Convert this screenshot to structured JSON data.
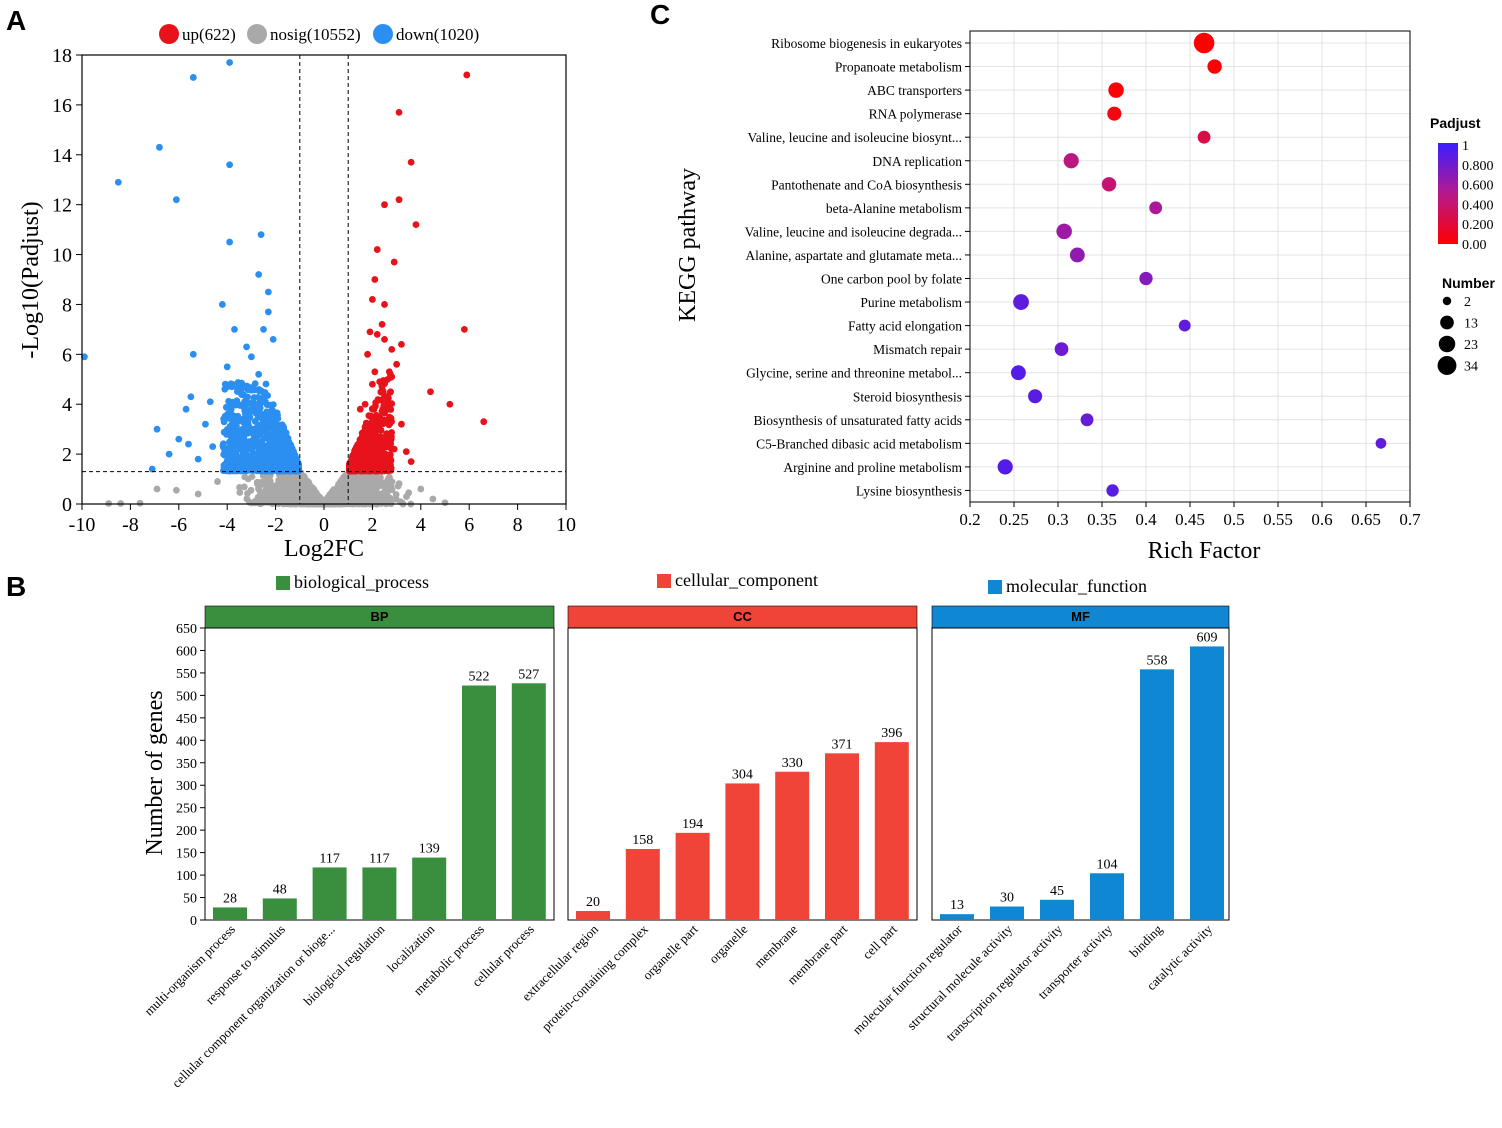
{
  "panels": {
    "a": "A",
    "b": "B",
    "c": "C"
  },
  "chart_data": [
    {
      "id": "A",
      "type": "scatter",
      "title": "",
      "xlabel": "Log2FC",
      "ylabel": "-Log10(Padjust)",
      "xlim": [
        -10,
        10
      ],
      "ylim": [
        0,
        18
      ],
      "xticks": [
        "-10",
        "-8",
        "-6",
        "-4",
        "-2",
        "0",
        "2",
        "4",
        "6",
        "8",
        "10"
      ],
      "yticks": [
        "0",
        "2",
        "4",
        "6",
        "8",
        "10",
        "12",
        "14",
        "16",
        "18"
      ],
      "thresholds": {
        "fc": [
          -1,
          1
        ],
        "padj": 1.3
      },
      "legend": [
        {
          "label": "up(622)",
          "color": "#e8121a"
        },
        {
          "label": "nosig(10552)",
          "color": "#a9a9a9"
        },
        {
          "label": "down(1020)",
          "color": "#2a8ff0"
        }
      ],
      "series": [
        {
          "name": "up",
          "points": [
            [
              5.9,
              17.2
            ],
            [
              3.1,
              15.7
            ],
            [
              3.6,
              13.7
            ],
            [
              3.1,
              12.2
            ],
            [
              2.5,
              12.0
            ],
            [
              3.8,
              11.2
            ],
            [
              2.2,
              10.2
            ],
            [
              2.9,
              9.7
            ],
            [
              2.1,
              9.0
            ],
            [
              2.0,
              8.2
            ],
            [
              2.5,
              8.0
            ],
            [
              2.4,
              7.2
            ],
            [
              5.8,
              7.0
            ],
            [
              1.9,
              6.9
            ],
            [
              2.2,
              6.8
            ],
            [
              3.2,
              6.4
            ],
            [
              2.5,
              6.6
            ],
            [
              1.8,
              6.0
            ],
            [
              2.8,
              6.2
            ],
            [
              3.0,
              5.6
            ],
            [
              2.1,
              5.3
            ],
            [
              2.7,
              5.3
            ],
            [
              4.4,
              4.5
            ],
            [
              5.2,
              4.0
            ],
            [
              6.6,
              3.3
            ],
            [
              3.2,
              3.2
            ],
            [
              2.0,
              4.8
            ],
            [
              2.3,
              4.9
            ],
            [
              1.5,
              3.8
            ],
            [
              1.7,
              4.0
            ],
            [
              3.4,
              2.1
            ],
            [
              3.6,
              1.7
            ],
            [
              2.6,
              1.9
            ],
            [
              2.9,
              2.2
            ]
          ],
          "cluster": {
            "x": [
              1.1,
              2.8
            ],
            "y": [
              1.3,
              5.2
            ],
            "n": 520
          }
        },
        {
          "name": "down",
          "points": [
            [
              -3.9,
              17.7
            ],
            [
              -5.4,
              17.1
            ],
            [
              -6.8,
              14.3
            ],
            [
              -3.9,
              13.6
            ],
            [
              -8.5,
              12.9
            ],
            [
              -6.1,
              12.2
            ],
            [
              -2.6,
              10.8
            ],
            [
              -3.9,
              10.5
            ],
            [
              -2.7,
              9.2
            ],
            [
              -2.3,
              8.5
            ],
            [
              -4.2,
              8.0
            ],
            [
              -2.3,
              7.7
            ],
            [
              -3.7,
              7.0
            ],
            [
              -2.5,
              7.0
            ],
            [
              -2.1,
              6.6
            ],
            [
              -5.4,
              6.0
            ],
            [
              -9.9,
              5.9
            ],
            [
              -3.2,
              6.3
            ],
            [
              -3.0,
              5.9
            ],
            [
              -4.0,
              5.5
            ],
            [
              -5.5,
              4.3
            ],
            [
              -5.7,
              3.8
            ],
            [
              -4.7,
              4.1
            ],
            [
              -6.9,
              3.0
            ],
            [
              -6.0,
              2.6
            ],
            [
              -6.4,
              2.0
            ],
            [
              -7.1,
              1.4
            ],
            [
              -5.6,
              2.4
            ],
            [
              -4.9,
              3.2
            ],
            [
              -3.5,
              4.8
            ],
            [
              -5.2,
              1.8
            ],
            [
              -4.6,
              2.3
            ],
            [
              -2.7,
              5.2
            ],
            [
              -4.1,
              4.6
            ]
          ],
          "cluster": {
            "x": [
              -4.2,
              -1.1
            ],
            "y": [
              1.3,
              4.9
            ],
            "n": 900
          }
        },
        {
          "name": "nosig",
          "points": [
            [
              -8.9,
              0.02
            ],
            [
              -8.4,
              0.02
            ],
            [
              -7.6,
              0.03
            ],
            [
              -6.9,
              0.6
            ],
            [
              -6.1,
              0.55
            ],
            [
              -5.2,
              0.4
            ],
            [
              -4.4,
              0.9
            ],
            [
              4.0,
              0.6
            ],
            [
              3.5,
              0.45
            ],
            [
              4.5,
              0.2
            ],
            [
              5.0,
              0.05
            ]
          ],
          "cluster": {
            "x": [
              -4.0,
              4.0
            ],
            "y": [
              0.0,
              1.3
            ],
            "n": 1400
          }
        }
      ]
    },
    {
      "id": "B",
      "type": "bar",
      "title": "",
      "ylabel": "Number of genes",
      "ylim": [
        0,
        650
      ],
      "yticks": [
        "0",
        "50",
        "100",
        "150",
        "200",
        "250",
        "300",
        "350",
        "400",
        "450",
        "500",
        "550",
        "600",
        "650"
      ],
      "groups": [
        {
          "strip": "BP",
          "legend": "biological_process",
          "color": "#3a8f3f",
          "categories": [
            "multi-organism process",
            "response to stimulus",
            "cellular component organization or bioge...",
            "biological regulation",
            "localization",
            "metabolic process",
            "cellular process"
          ],
          "values": [
            28,
            48,
            117,
            117,
            139,
            522,
            527
          ],
          "value_labels": [
            "28",
            "48",
            "117",
            "117",
            "139",
            "522",
            "527"
          ]
        },
        {
          "strip": "CC",
          "legend": "cellular_component",
          "color": "#f04438",
          "categories": [
            "extracellular region",
            "protein-containing complex",
            "organelle part",
            "organelle",
            "membrane",
            "membrane part",
            "cell part"
          ],
          "values": [
            20,
            158,
            194,
            304,
            330,
            371,
            396
          ],
          "value_labels": [
            "20",
            "158",
            "194",
            "304",
            "330",
            "371",
            "396"
          ]
        },
        {
          "strip": "MF",
          "legend": "molecular_function",
          "color": "#0f87d2",
          "categories": [
            "molecular function regulator",
            "structural molecule activity",
            "transcription regulator activity",
            "transporter activity",
            "binding",
            "catalytic activity"
          ],
          "values": [
            13,
            30,
            45,
            104,
            558,
            609
          ],
          "value_labels": [
            "13",
            "30",
            "45",
            "104",
            "558",
            "609"
          ]
        }
      ]
    },
    {
      "id": "C",
      "type": "scatter",
      "title": "",
      "xlabel": "Rich Factor",
      "ylabel": "KEGG pathway",
      "xlim": [
        0.2,
        0.7
      ],
      "xticks": [
        "0.2",
        "0.25",
        "0.3",
        "0.35",
        "0.4",
        "0.45",
        "0.5",
        "0.55",
        "0.6",
        "0.65",
        "0.7"
      ],
      "pathways": [
        "Ribosome biogenesis in eukaryotes",
        "Propanoate metabolism",
        "ABC transporters",
        "RNA polymerase",
        "Valine, leucine and isoleucine biosynt...",
        "DNA replication",
        "Pantothenate and CoA biosynthesis",
        "beta-Alanine metabolism",
        "Valine, leucine and isoleucine degrada...",
        "Alanine, aspartate and glutamate meta...",
        "One carbon pool by folate",
        "Purine metabolism",
        "Fatty acid elongation",
        "Mismatch repair",
        "Glycine, serine and threonine metabol...",
        "Steroid biosynthesis",
        "Biosynthesis of unsaturated fatty acids",
        "C5-Branched dibasic acid metabolism",
        "Arginine and proline metabolism",
        "Lysine biosynthesis"
      ],
      "rich_factor": [
        0.466,
        0.478,
        0.366,
        0.364,
        0.466,
        0.315,
        0.358,
        0.411,
        0.307,
        0.322,
        0.4,
        0.258,
        0.444,
        0.304,
        0.255,
        0.274,
        0.333,
        0.667,
        0.24,
        0.362
      ],
      "padjust": [
        0.0,
        0.02,
        0.03,
        0.05,
        0.25,
        0.45,
        0.4,
        0.55,
        0.6,
        0.65,
        0.7,
        0.85,
        0.85,
        0.8,
        0.9,
        0.88,
        0.82,
        0.85,
        0.9,
        0.88
      ],
      "number": [
        34,
        12,
        15,
        11,
        8,
        14,
        12,
        8,
        15,
        13,
        9,
        16,
        6,
        10,
        13,
        11,
        8,
        4,
        14,
        7
      ],
      "colorbar": {
        "title": "Padjust",
        "range": [
          0,
          1
        ],
        "ticks": [
          "1",
          "0.800",
          "0.600",
          "0.400",
          "0.200",
          "0.00"
        ],
        "low_color": "#ff0000",
        "high_color": "#3b1dff"
      },
      "size_legend": {
        "title": "Number",
        "values": [
          2,
          13,
          23,
          34
        ],
        "labels": [
          "2",
          "13",
          "23",
          "34"
        ]
      }
    }
  ]
}
